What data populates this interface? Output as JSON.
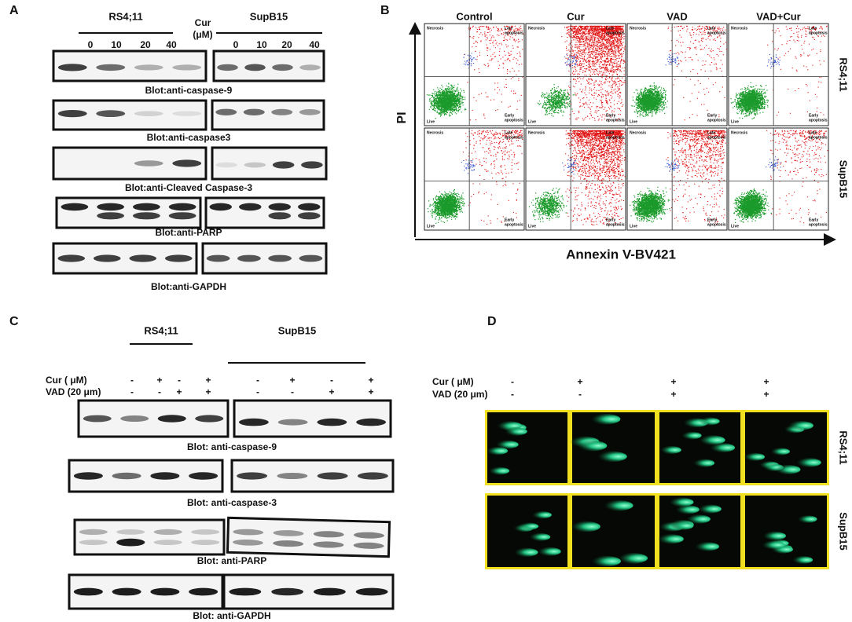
{
  "panel_a": {
    "label": "A",
    "cell_lines": [
      "RS4;11",
      "SupB15"
    ],
    "dose_label": [
      "Cur",
      "(μM)"
    ],
    "doses": [
      "0",
      "10",
      "20",
      "40"
    ],
    "blots": [
      "Blot:anti-caspase-9",
      "Blot:anti-caspase3",
      "Blot:anti-Cleaved Caspase-3",
      "Blot:anti-PARP",
      "Blot:anti-GAPDH"
    ]
  },
  "panel_b": {
    "label": "B",
    "columns": [
      "Control",
      "Cur",
      "VAD",
      "VAD+Cur"
    ],
    "rows": [
      "RS4;11",
      "SupB15"
    ],
    "y_axis": "PI",
    "x_axis": "Annexin V-BV421",
    "quadrants": {
      "top_left": "Necrosis",
      "top_right": [
        "Late",
        "apoptosis"
      ],
      "bottom_left": "Live",
      "bottom_right": [
        "Early",
        "apoptosis"
      ]
    }
  },
  "panel_c": {
    "label": "C",
    "cell_lines": [
      "RS4;11",
      "SupB15"
    ],
    "treatments": [
      {
        "name": "Cur ( μM)",
        "signs": [
          "-",
          "+",
          "-",
          "+",
          "-",
          "+",
          "-",
          "+"
        ]
      },
      {
        "name": "VAD (20 μm)",
        "signs": [
          "-",
          "-",
          "+",
          "+",
          "-",
          "-",
          "+",
          "+"
        ]
      }
    ],
    "blots": [
      "Blot: anti-caspase-9",
      "Blot: anti-caspase-3",
      "Blot: anti-PARP",
      "Blot: anti-GAPDH"
    ]
  },
  "panel_d": {
    "label": "D",
    "rows": [
      "RS4;11",
      "SupB15"
    ],
    "treatments": [
      {
        "name": "Cur ( μM)",
        "signs": [
          "-",
          "+",
          "+",
          "+"
        ]
      },
      {
        "name": "VAD (20 μm)",
        "signs": [
          "-",
          "-",
          "+",
          "+"
        ]
      }
    ]
  }
}
